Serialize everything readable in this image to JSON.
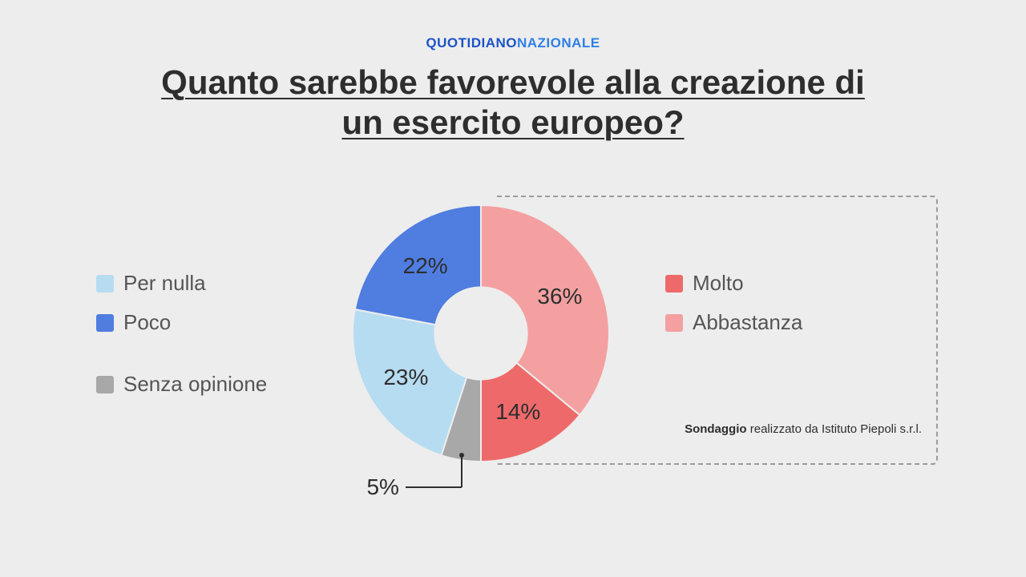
{
  "brand": {
    "part1": "QUOTIDIANO",
    "part2": "NAZIONALE"
  },
  "title": "Quanto sarebbe favorevole alla creazione di un esercito europeo?",
  "title_fontsize": 42,
  "background_color": "#ededed",
  "chart": {
    "type": "donut",
    "inner_radius_ratio": 0.36,
    "stroke_color": "#ededed",
    "stroke_width": 2,
    "label_fontsize": 28,
    "label_color": "#2e2e2e",
    "slices": [
      {
        "key": "abbastanza",
        "label": "Abbastanza",
        "value": 36,
        "color": "#f4a0a0",
        "group": "right"
      },
      {
        "key": "molto",
        "label": "Molto",
        "value": 14,
        "color": "#ee6a6a",
        "group": "right"
      },
      {
        "key": "senza",
        "label": "Senza opinione",
        "value": 5,
        "color": "#a8a8a8",
        "group": "left_bottom"
      },
      {
        "key": "pernulla",
        "label": "Per nulla",
        "value": 23,
        "color": "#b6dcf1",
        "group": "left"
      },
      {
        "key": "poco",
        "label": "Poco",
        "value": 22,
        "color": "#4f7de0",
        "group": "left"
      }
    ],
    "callout": {
      "key": "senza",
      "text": "5%",
      "fontsize": 28
    }
  },
  "legend": {
    "fontsize": 26,
    "text_color": "#555555",
    "swatch_size": 22,
    "left": [
      {
        "key": "pernulla",
        "label": "Per nulla",
        "color": "#b6dcf1"
      },
      {
        "key": "poco",
        "label": "Poco",
        "color": "#4f7de0"
      }
    ],
    "left_bottom": [
      {
        "key": "senza",
        "label": "Senza opinione",
        "color": "#a8a8a8"
      }
    ],
    "right": [
      {
        "key": "molto",
        "label": "Molto",
        "color": "#ee6a6a"
      },
      {
        "key": "abbastanza",
        "label": "Abbastanza",
        "color": "#f4a0a0"
      }
    ]
  },
  "highlight_box": {
    "border_color": "#9b9b9b",
    "dash": true
  },
  "attribution": {
    "strong": "Sondaggio",
    "rest": " realizzato da Istituto Piepoli s.r.l.",
    "fontsize": 15
  }
}
